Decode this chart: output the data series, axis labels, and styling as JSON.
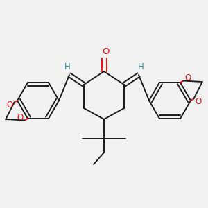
{
  "background_color": "#f2f2f2",
  "bond_color": "#1a1a1a",
  "oxygen_color": "#ee1111",
  "hydrogen_color": "#2d8b8b",
  "line_width": 1.4,
  "figsize": [
    3.0,
    3.0
  ],
  "dpi": 100,
  "xlim": [
    0,
    300
  ],
  "ylim": [
    0,
    300
  ]
}
